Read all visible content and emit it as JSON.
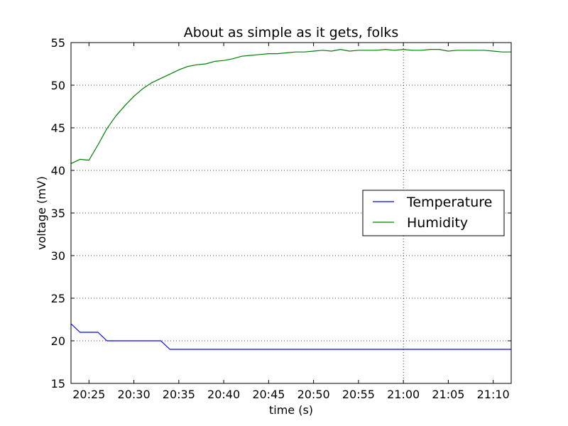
{
  "chart_data": {
    "type": "line",
    "title": "About as simple as it gets, folks",
    "xlabel": "time (s)",
    "ylabel": "voltage (mV)",
    "xlim": [
      "20:23",
      "21:12"
    ],
    "ylim": [
      15,
      55
    ],
    "x_ticks": [
      "20:25",
      "20:30",
      "20:35",
      "20:40",
      "20:45",
      "20:50",
      "20:55",
      "21:00",
      "21:05",
      "21:10"
    ],
    "y_ticks": [
      15,
      20,
      25,
      30,
      35,
      40,
      45,
      50,
      55
    ],
    "grid": "dotted",
    "vertical_marker": "21:00",
    "legend_position": "center-right",
    "x": [
      "20:23",
      "20:24",
      "20:25",
      "20:26",
      "20:27",
      "20:28",
      "20:29",
      "20:30",
      "20:31",
      "20:32",
      "20:33",
      "20:34",
      "20:35",
      "20:36",
      "20:37",
      "20:38",
      "20:39",
      "20:40",
      "20:41",
      "20:42",
      "20:43",
      "20:44",
      "20:45",
      "20:46",
      "20:47",
      "20:48",
      "20:49",
      "20:50",
      "20:51",
      "20:52",
      "20:53",
      "20:54",
      "20:55",
      "20:56",
      "20:57",
      "20:58",
      "20:59",
      "21:00",
      "21:01",
      "21:02",
      "21:03",
      "21:04",
      "21:05",
      "21:06",
      "21:07",
      "21:08",
      "21:09",
      "21:10",
      "21:11",
      "21:12"
    ],
    "series": [
      {
        "name": "Temperature",
        "color": "#0000ff",
        "values": [
          22,
          21,
          21,
          21,
          20,
          20,
          20,
          20,
          20,
          20,
          20,
          19,
          19,
          19,
          19,
          19,
          19,
          19,
          19,
          19,
          19,
          19,
          19,
          19,
          19,
          19,
          19,
          19,
          19,
          19,
          19,
          19,
          19,
          19,
          19,
          19,
          19,
          19,
          19,
          19,
          19,
          19,
          19,
          19,
          19,
          19,
          19,
          19,
          19,
          19
        ]
      },
      {
        "name": "Humidity",
        "color": "#008000",
        "values": [
          40.8,
          41.3,
          41.2,
          43.0,
          44.9,
          46.4,
          47.6,
          48.7,
          49.6,
          50.3,
          50.8,
          51.3,
          51.8,
          52.2,
          52.4,
          52.5,
          52.8,
          52.9,
          53.1,
          53.4,
          53.5,
          53.6,
          53.7,
          53.7,
          53.8,
          53.9,
          53.9,
          54.0,
          54.1,
          54.0,
          54.2,
          54.0,
          54.1,
          54.1,
          54.1,
          54.2,
          54.1,
          54.2,
          54.1,
          54.1,
          54.2,
          54.2,
          54.0,
          54.1,
          54.1,
          54.1,
          54.1,
          54.0,
          53.9,
          53.9
        ]
      }
    ]
  }
}
